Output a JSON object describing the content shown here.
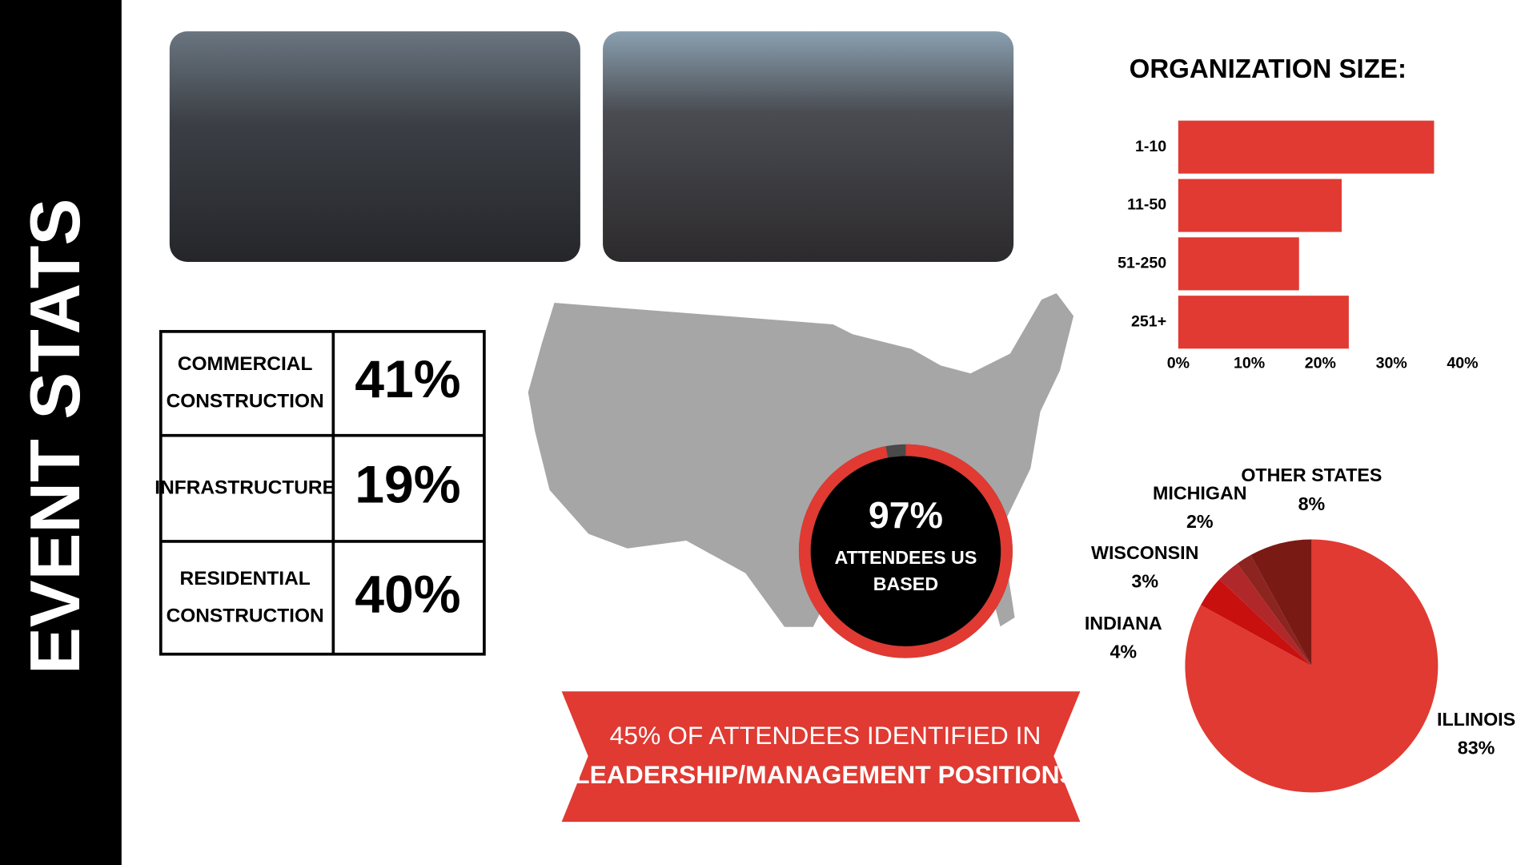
{
  "title": "EVENT STATS",
  "sector_table": {
    "rows": [
      {
        "label_lines": [
          "COMMERCIAL",
          "CONSTRUCTION"
        ],
        "value": "41%"
      },
      {
        "label_lines": [
          "INFRASTRUCTURE"
        ],
        "value": "19%"
      },
      {
        "label_lines": [
          "RESIDENTIAL",
          "CONSTRUCTION"
        ],
        "value": "40%"
      }
    ]
  },
  "us_stat": {
    "value": 97,
    "value_label": "97%",
    "label_lines": [
      "ATTENDEES US",
      "BASED"
    ]
  },
  "banner": {
    "lines": [
      "45% OF ATTENDEES IDENTIFIED IN",
      "LEADERSHIP/MANAGEMENT POSITIONS"
    ]
  },
  "chart_data": [
    {
      "type": "bar",
      "orientation": "horizontal",
      "title": "ORGANIZATION SIZE:",
      "categories": [
        "1-10",
        "11-50",
        "51-250",
        "251+"
      ],
      "values": [
        36,
        23,
        17,
        24
      ],
      "color": "#e03a32",
      "xlim": [
        0,
        40
      ],
      "xticks": [
        {
          "value": 0,
          "label": "0%"
        },
        {
          "value": 10,
          "label": "10%"
        },
        {
          "value": 20,
          "label": "20%"
        },
        {
          "value": 30,
          "label": "30%"
        },
        {
          "value": 40,
          "label": "40%"
        }
      ]
    },
    {
      "type": "pie",
      "categories": [
        "ILLINOIS",
        "INDIANA",
        "WISCONSIN",
        "MICHIGAN",
        "OTHER STATES"
      ],
      "values": [
        83,
        4,
        3,
        2,
        8
      ],
      "value_labels": [
        "83%",
        "4%",
        "3%",
        "2%",
        "8%"
      ],
      "colors": [
        "#e03a32",
        "#c8100f",
        "#b0282a",
        "#8c2420",
        "#7a1a14"
      ]
    }
  ]
}
